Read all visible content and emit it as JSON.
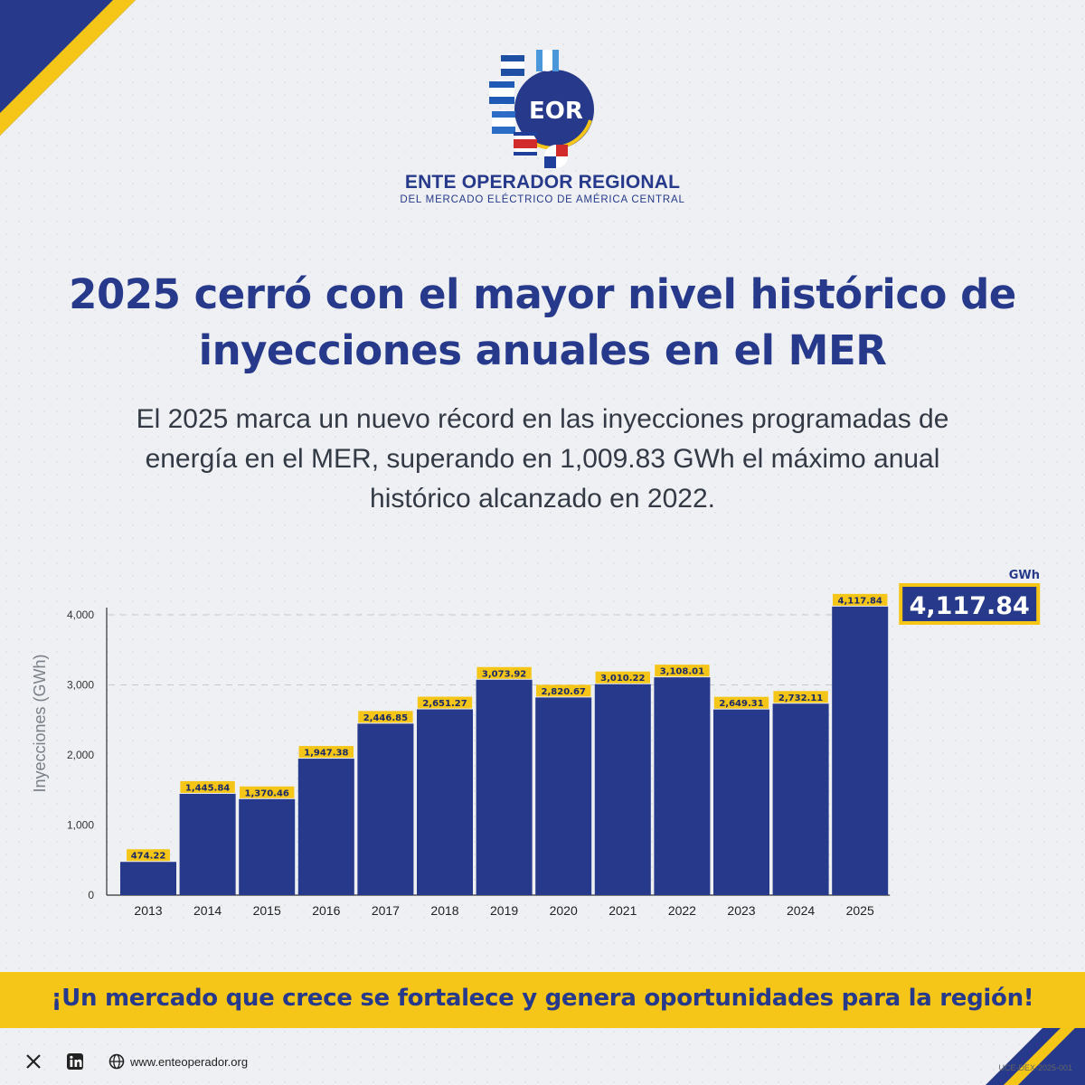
{
  "brand": {
    "logo_text": "EOR",
    "org_name": "ENTE OPERADOR REGIONAL",
    "org_subtitle": "DEL MERCADO ELÉCTRICO DE AMÉRICA CENTRAL",
    "primary_color": "#26398a",
    "accent_color": "#f5c518"
  },
  "headline": {
    "line1": "2025 cerró con el mayor nivel histórico de",
    "line2": "inyecciones anuales en el MER"
  },
  "subtext": {
    "line1": "El 2025 marca un nuevo récord en las inyecciones programadas de",
    "line2": "energía en el MER, superando en 1,009.83 GWh el máximo anual",
    "line3": "histórico alcanzado en 2022."
  },
  "chart_data": {
    "type": "bar",
    "categories": [
      "2013",
      "2014",
      "2015",
      "2016",
      "2017",
      "2018",
      "2019",
      "2020",
      "2021",
      "2022",
      "2023",
      "2024",
      "2025"
    ],
    "values": [
      474.22,
      1445.84,
      1370.46,
      1947.38,
      2446.85,
      2651.27,
      3073.92,
      2820.67,
      3010.22,
      3108.01,
      2649.31,
      2732.11,
      4117.84
    ],
    "value_labels": [
      "474.22",
      "1,445.84",
      "1,370.46",
      "1,947.38",
      "2,446.85",
      "2,651.27",
      "3,073.92",
      "2,820.67",
      "3,010.22",
      "3,108.01",
      "2,649.31",
      "2,732.11",
      "4,117.84"
    ],
    "ylabel": "Inyecciones (GWh)",
    "unit_label": "GWh",
    "yticks": [
      0,
      1000,
      2000,
      3000,
      4000
    ],
    "ytick_labels": [
      "0",
      "1,000",
      "2,000",
      "3,000",
      "4,000"
    ],
    "ylim": [
      0,
      4200
    ],
    "grid": "dashed horizontal at 3,000 and 4,000",
    "highlight": {
      "category": "2025",
      "label": "4,117.84"
    },
    "bar_color": "#26398a",
    "label_color": "#f5c518"
  },
  "banner": {
    "text": "¡Un mercado que crece se fortalece y genera oportunidades para la región!"
  },
  "footer": {
    "x_icon": "x-icon",
    "linkedin_icon": "linkedin-icon",
    "globe_icon": "globe-icon",
    "website": "www.enteoperador.org",
    "doc_code": "UCE-DEX-2025-001"
  }
}
